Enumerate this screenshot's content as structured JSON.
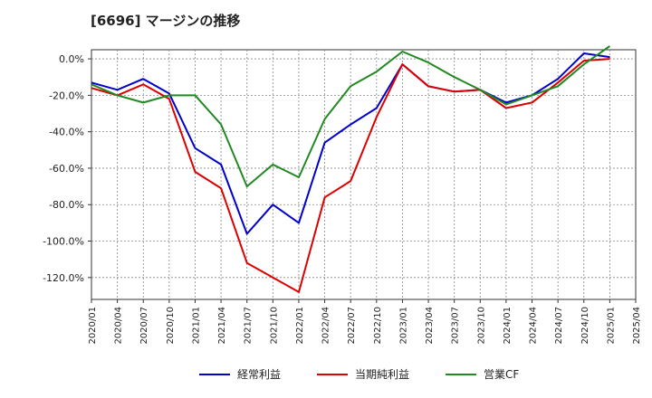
{
  "chart_data": {
    "type": "line",
    "title": "[6696]  マージンの推移",
    "xlabel": "",
    "ylabel": "",
    "ylim": [
      -132,
      5
    ],
    "y_ticks": [
      0,
      -20,
      -40,
      -60,
      -80,
      -100,
      -120
    ],
    "y_tick_labels": [
      "0.0%",
      "-20.0%",
      "-40.0%",
      "-60.0%",
      "-80.0%",
      "-100.0%",
      "-120.0%"
    ],
    "x_tick_labels": [
      "2020/01",
      "2020/04",
      "2020/07",
      "2020/10",
      "2021/01",
      "2021/04",
      "2021/07",
      "2021/10",
      "2022/01",
      "2022/04",
      "2022/07",
      "2022/10",
      "2023/01",
      "2023/04",
      "2023/07",
      "2023/10",
      "2024/01",
      "2024/04",
      "2024/07",
      "2024/10",
      "2025/01",
      "2025/04"
    ],
    "grid": true,
    "legend_position": "bottom",
    "series": [
      {
        "name": "経常利益",
        "color": "#0000cc",
        "values": [
          -13,
          -17,
          -11,
          -19,
          -49,
          -58,
          -96,
          -80,
          -90,
          -46,
          -36,
          -27,
          -3,
          -15,
          -18,
          -17,
          -24,
          -20,
          -11,
          3,
          1,
          null
        ]
      },
      {
        "name": "当期純利益",
        "color": "#dd0000",
        "values": [
          -16,
          -20,
          -14,
          -22,
          -62,
          -71,
          -112,
          -120,
          -128,
          -76,
          -67,
          -32,
          -3,
          -15,
          -18,
          -17,
          -27,
          -24,
          -13,
          -1,
          0,
          null
        ]
      },
      {
        "name": "営業CF",
        "color": "#228822",
        "values": [
          -14,
          -20,
          -24,
          -20,
          -20,
          -36,
          -70,
          -58,
          -65,
          -33,
          -15,
          -7,
          4,
          -2,
          -10,
          -17,
          -25,
          -20,
          -15,
          -3,
          7,
          null
        ]
      }
    ]
  }
}
